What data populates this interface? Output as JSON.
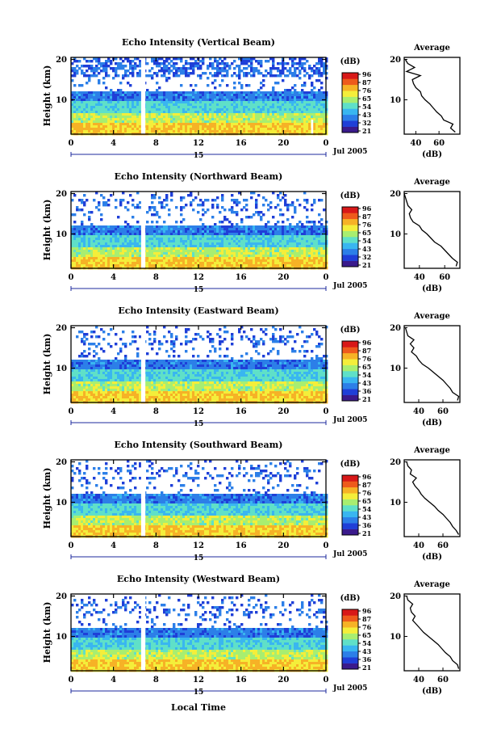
{
  "figure": {
    "xlabel": "Local Time",
    "ylabel": "Height (km)",
    "colorbar_unit": "(dB)",
    "date_label": "Jul 2005",
    "day_label": "15",
    "profile_title": "Average",
    "profile_xlabel": "(dB)"
  },
  "chart_data": [
    {
      "type": "heatmap",
      "title": "Echo Intensity (Vertical Beam)",
      "xlabel": "Local Time",
      "ylabel": "Height (km)",
      "x_ticks": [
        "0",
        "4",
        "8",
        "12",
        "16",
        "20",
        "0"
      ],
      "y_ticks": [
        "20",
        "10"
      ],
      "xlim": [
        0,
        24
      ],
      "ylim": [
        1.5,
        20.5
      ],
      "data_gaps_hours": [
        [
          6.6,
          7.0
        ],
        [
          22.6,
          22.8
        ]
      ],
      "colorbar_ticks": [
        "96",
        "87",
        "76",
        "65",
        "54",
        "43",
        "32",
        "21"
      ],
      "profile": {
        "title": "Average",
        "x_ticks": [
          "40",
          "60"
        ],
        "xlim": [
          30,
          78
        ],
        "heights_km": [
          2,
          3,
          4,
          5,
          6,
          7,
          8,
          9,
          10,
          11,
          12,
          13,
          14,
          15,
          16,
          17,
          18,
          19,
          20
        ],
        "values_db": [
          74,
          70,
          72,
          64,
          62,
          58,
          55,
          52,
          48,
          45,
          44,
          40,
          38,
          37,
          44,
          32,
          39,
          33,
          31
        ]
      }
    },
    {
      "type": "heatmap",
      "title": "Echo Intensity (Northward Beam)",
      "xlabel": "Local Time",
      "ylabel": "Height (km)",
      "x_ticks": [
        "0",
        "4",
        "8",
        "12",
        "16",
        "20",
        "0"
      ],
      "y_ticks": [
        "20",
        "10"
      ],
      "xlim": [
        0,
        24
      ],
      "ylim": [
        1.5,
        20.5
      ],
      "data_gaps_hours": [
        [
          6.6,
          7.0
        ]
      ],
      "colorbar_ticks": [
        "96",
        "87",
        "76",
        "65",
        "54",
        "43",
        "32",
        "21"
      ],
      "profile": {
        "title": "Average",
        "x_ticks": [
          "40",
          "60"
        ],
        "xlim": [
          28,
          72
        ],
        "heights_km": [
          2,
          3,
          4,
          5,
          6,
          7,
          8,
          9,
          10,
          11,
          12,
          13,
          14,
          15,
          16,
          17,
          18,
          19,
          20
        ],
        "values_db": [
          69,
          70,
          66,
          63,
          60,
          57,
          52,
          49,
          46,
          42,
          40,
          35,
          33,
          32,
          34,
          31,
          30,
          29,
          28
        ]
      }
    },
    {
      "type": "heatmap",
      "title": "Echo Intensity (Eastward Beam)",
      "xlabel": "Local Time",
      "ylabel": "Height (km)",
      "x_ticks": [
        "0",
        "4",
        "8",
        "12",
        "16",
        "20",
        "0"
      ],
      "y_ticks": [
        "20",
        "10"
      ],
      "xlim": [
        0,
        24
      ],
      "ylim": [
        1.5,
        20.5
      ],
      "data_gaps_hours": [
        [
          6.6,
          7.0
        ]
      ],
      "colorbar_ticks": [
        "96",
        "87",
        "76",
        "65",
        "54",
        "43",
        "36",
        "21"
      ],
      "profile": {
        "title": "Average",
        "x_ticks": [
          "40",
          "60"
        ],
        "xlim": [
          28,
          74
        ],
        "heights_km": [
          2,
          3,
          4,
          5,
          6,
          7,
          8,
          9,
          10,
          11,
          12,
          13,
          14,
          15,
          16,
          17,
          18,
          19,
          20
        ],
        "values_db": [
          72,
          73,
          68,
          66,
          63,
          60,
          56,
          52,
          48,
          43,
          40,
          38,
          34,
          36,
          33,
          36,
          31,
          30,
          29
        ]
      }
    },
    {
      "type": "heatmap",
      "title": "Echo Intensity (Southward Beam)",
      "xlabel": "Local Time",
      "ylabel": "Height (km)",
      "x_ticks": [
        "0",
        "4",
        "8",
        "12",
        "16",
        "20",
        "0"
      ],
      "y_ticks": [
        "20",
        "10"
      ],
      "xlim": [
        0,
        24
      ],
      "ylim": [
        1.5,
        20.5
      ],
      "data_gaps_hours": [
        [
          6.6,
          7.0
        ]
      ],
      "colorbar_ticks": [
        "96",
        "87",
        "76",
        "65",
        "54",
        "43",
        "36",
        "21"
      ],
      "profile": {
        "title": "Average",
        "x_ticks": [
          "40",
          "60"
        ],
        "xlim": [
          28,
          74
        ],
        "heights_km": [
          2,
          3,
          4,
          5,
          6,
          7,
          8,
          9,
          10,
          11,
          12,
          13,
          14,
          15,
          16,
          17,
          18,
          19,
          20
        ],
        "values_db": [
          73,
          71,
          68,
          66,
          63,
          60,
          56,
          53,
          49,
          45,
          42,
          40,
          37,
          35,
          38,
          33,
          34,
          31,
          30
        ]
      }
    },
    {
      "type": "heatmap",
      "title": "Echo Intensity (Westward Beam)",
      "xlabel": "Local Time",
      "ylabel": "Height (km)",
      "x_ticks": [
        "0",
        "4",
        "8",
        "12",
        "16",
        "20",
        "0"
      ],
      "y_ticks": [
        "20",
        "10"
      ],
      "xlim": [
        0,
        24
      ],
      "ylim": [
        1.5,
        20.5
      ],
      "data_gaps_hours": [
        [
          6.6,
          7.0
        ]
      ],
      "colorbar_ticks": [
        "96",
        "87",
        "76",
        "65",
        "54",
        "43",
        "36",
        "21"
      ],
      "profile": {
        "title": "Average",
        "x_ticks": [
          "40",
          "60"
        ],
        "xlim": [
          28,
          74
        ],
        "heights_km": [
          2,
          3,
          4,
          5,
          6,
          7,
          8,
          9,
          10,
          11,
          12,
          13,
          14,
          15,
          16,
          17,
          18,
          19,
          20
        ],
        "values_db": [
          73,
          72,
          68,
          66,
          62,
          59,
          56,
          52,
          48,
          44,
          41,
          38,
          35,
          37,
          34,
          33,
          35,
          31,
          30
        ]
      }
    }
  ],
  "colors": {
    "scale": [
      "#3a1a8c",
      "#1f3fd8",
      "#2c7fe8",
      "#39b6f0",
      "#5fe0c8",
      "#a8ee70",
      "#f4ee3a",
      "#f6b226",
      "#ee5a1c",
      "#d81818"
    ],
    "axis": "#000000",
    "gap": "#ffffff"
  }
}
